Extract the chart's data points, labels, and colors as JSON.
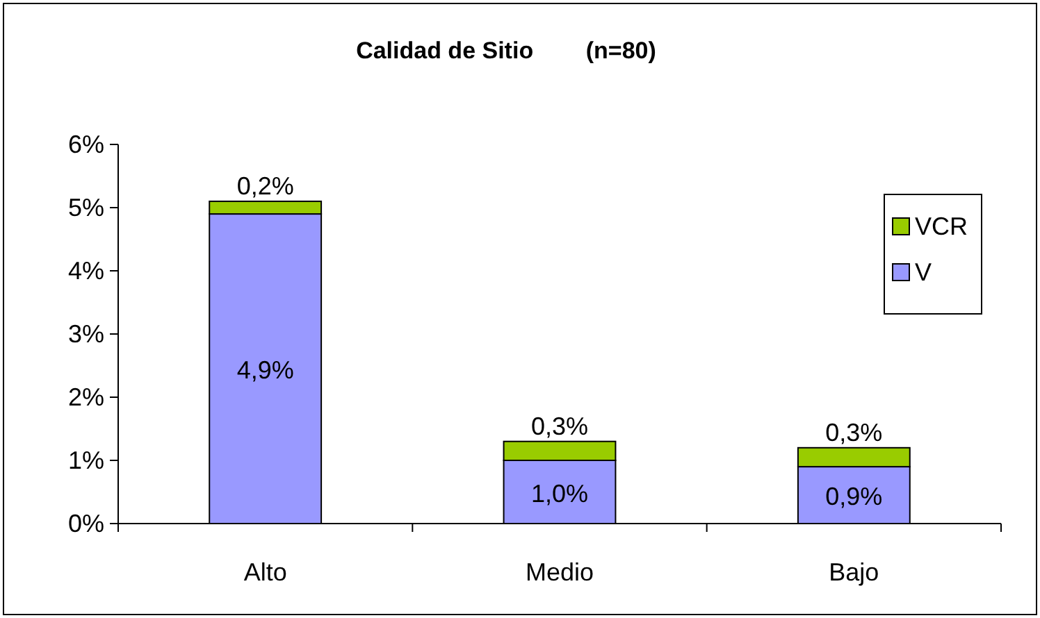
{
  "chart_data": {
    "type": "bar",
    "title": "Calidad de Sitio        (n=80)",
    "categories": [
      "Alto",
      "Medio",
      "Bajo"
    ],
    "stacked": true,
    "series": [
      {
        "name": "V",
        "color": "#9999ff",
        "values": [
          4.9,
          1.0,
          0.9
        ],
        "value_labels": [
          "4,9%",
          "1,0%",
          "0,9%"
        ]
      },
      {
        "name": "VCR",
        "color": "#99cc00",
        "values": [
          0.2,
          0.3,
          0.3
        ],
        "value_labels": [
          "0,2%",
          "0,3%",
          "0,3%"
        ]
      }
    ],
    "ylim": [
      0,
      6
    ],
    "yticks": [
      {
        "value": 0,
        "label": "0%"
      },
      {
        "value": 1,
        "label": "1%"
      },
      {
        "value": 2,
        "label": "2%"
      },
      {
        "value": 3,
        "label": "3%"
      },
      {
        "value": 4,
        "label": "4%"
      },
      {
        "value": 5,
        "label": "5%"
      },
      {
        "value": 6,
        "label": "6%"
      }
    ],
    "grid": false,
    "legend": "right"
  }
}
